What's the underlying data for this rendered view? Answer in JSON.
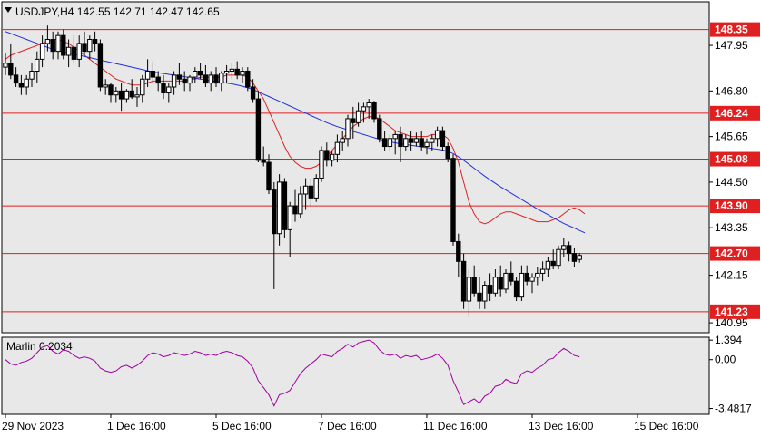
{
  "header": {
    "symbol_line": "USDJPY,H4  142.55 142.71 142.47 142.65"
  },
  "oscillator": {
    "label": "Marlin 0.2034",
    "ticks": [
      "1.394",
      "0.00",
      "-3.4817"
    ],
    "tick_values": [
      1.394,
      0.0,
      -3.4817
    ]
  },
  "colors": {
    "background": "#ffffff",
    "plot_bg": "#e8e8e8",
    "candle": "#000000",
    "level_line": "#e02020",
    "level_label_bg": "#e02020",
    "fast_ma": "#e02020",
    "slow_ma": "#2030e0",
    "oscillator": "#a000a0"
  },
  "chart_data": [
    {
      "type": "candlestick",
      "title": "USDJPY,H4",
      "ohlc_current": {
        "open": 142.55,
        "high": 142.71,
        "low": 142.47,
        "close": 142.65
      },
      "y_ticks": [
        "147.95",
        "146.80",
        "145.65",
        "144.50",
        "143.35",
        "142.15",
        "140.95"
      ],
      "y_tick_values": [
        147.95,
        146.8,
        145.65,
        144.5,
        143.35,
        142.15,
        140.95
      ],
      "ylim": [
        140.7,
        149.05
      ],
      "x_ticks": [
        "29 Nov 2023",
        "1 Dec 16:00",
        "5 Dec 16:00",
        "7 Dec 16:00",
        "11 Dec 16:00",
        "13 Dec 16:00",
        "15 Dec 16:00"
      ],
      "x_tick_index": [
        0,
        20,
        40,
        60,
        80,
        100,
        120
      ],
      "levels": [
        {
          "value": 148.35,
          "label": "148.35"
        },
        {
          "value": 146.24,
          "label": "146.24"
        },
        {
          "value": 145.08,
          "label": "145.08"
        },
        {
          "value": 143.9,
          "label": "143.90"
        },
        {
          "value": 142.7,
          "label": "142.70"
        },
        {
          "value": 141.23,
          "label": "141.23"
        }
      ],
      "candles": [
        [
          147.4,
          147.75,
          147.2,
          147.5
        ],
        [
          147.5,
          148.0,
          147.1,
          147.2
        ],
        [
          147.2,
          147.4,
          146.9,
          147.0
        ],
        [
          147.0,
          147.2,
          146.7,
          146.9
        ],
        [
          146.9,
          147.2,
          146.7,
          147.1
        ],
        [
          147.1,
          147.5,
          146.9,
          147.3
        ],
        [
          147.3,
          147.8,
          147.0,
          147.6
        ],
        [
          147.6,
          148.2,
          147.4,
          148.0
        ],
        [
          148.0,
          148.45,
          147.8,
          148.1
        ],
        [
          148.1,
          148.3,
          147.6,
          147.8
        ],
        [
          147.8,
          148.3,
          147.6,
          148.2
        ],
        [
          148.2,
          148.35,
          147.6,
          147.7
        ],
        [
          147.7,
          148.1,
          147.4,
          147.9
        ],
        [
          147.9,
          148.2,
          147.5,
          147.6
        ],
        [
          147.6,
          148.2,
          147.4,
          148.0
        ],
        [
          148.0,
          148.3,
          147.7,
          147.8
        ],
        [
          147.8,
          148.2,
          147.6,
          148.1
        ],
        [
          148.1,
          148.3,
          147.8,
          148.0
        ],
        [
          148.0,
          148.1,
          146.8,
          146.9
        ],
        [
          146.9,
          147.1,
          146.7,
          146.95
        ],
        [
          146.95,
          147.0,
          146.5,
          146.7
        ],
        [
          146.7,
          146.9,
          146.5,
          146.8
        ],
        [
          146.8,
          147.0,
          146.3,
          146.6
        ],
        [
          146.6,
          146.85,
          146.5,
          146.8
        ],
        [
          146.8,
          147.1,
          146.6,
          146.65
        ],
        [
          146.65,
          146.9,
          146.4,
          146.7
        ],
        [
          146.7,
          147.2,
          146.5,
          147.1
        ],
        [
          147.1,
          147.6,
          146.9,
          147.3
        ],
        [
          147.3,
          147.55,
          147.0,
          147.15
        ],
        [
          147.15,
          147.3,
          146.8,
          147.0
        ],
        [
          147.0,
          147.2,
          146.6,
          146.75
        ],
        [
          146.75,
          147.0,
          146.5,
          146.9
        ],
        [
          146.9,
          147.3,
          146.7,
          147.2
        ],
        [
          147.2,
          147.5,
          146.95,
          147.1
        ],
        [
          147.1,
          147.3,
          146.8,
          147.0
        ],
        [
          147.0,
          147.2,
          146.8,
          147.15
        ],
        [
          147.15,
          147.4,
          147.0,
          147.3
        ],
        [
          147.3,
          147.5,
          147.1,
          147.2
        ],
        [
          147.2,
          147.45,
          146.9,
          147.0
        ],
        [
          147.0,
          147.3,
          146.8,
          147.2
        ],
        [
          147.2,
          147.4,
          146.9,
          147.0
        ],
        [
          147.0,
          147.3,
          146.8,
          147.25
        ],
        [
          147.25,
          147.45,
          147.0,
          147.3
        ],
        [
          147.3,
          147.5,
          147.1,
          147.35
        ],
        [
          147.35,
          147.55,
          147.1,
          147.2
        ],
        [
          147.2,
          147.4,
          147.0,
          147.3
        ],
        [
          147.3,
          147.4,
          146.8,
          146.9
        ],
        [
          146.9,
          147.1,
          146.5,
          146.6
        ],
        [
          146.6,
          146.8,
          145.0,
          145.05
        ],
        [
          145.05,
          145.4,
          144.9,
          145.0
        ],
        [
          145.0,
          145.2,
          144.2,
          144.3
        ],
        [
          144.3,
          144.5,
          141.8,
          143.2
        ],
        [
          143.2,
          144.7,
          142.9,
          144.5
        ],
        [
          144.5,
          144.6,
          143.1,
          143.3
        ],
        [
          143.3,
          144.0,
          142.6,
          143.9
        ],
        [
          143.9,
          144.3,
          143.5,
          143.7
        ],
        [
          143.7,
          144.4,
          143.6,
          144.2
        ],
        [
          144.2,
          144.6,
          143.8,
          144.4
        ],
        [
          144.4,
          144.6,
          143.9,
          144.1
        ],
        [
          144.1,
          144.7,
          144.0,
          144.6
        ],
        [
          144.6,
          145.4,
          144.5,
          145.3
        ],
        [
          145.3,
          145.5,
          144.9,
          145.05
        ],
        [
          145.05,
          145.3,
          144.9,
          145.2
        ],
        [
          145.2,
          145.7,
          145.0,
          145.5
        ],
        [
          145.5,
          145.8,
          145.3,
          145.6
        ],
        [
          145.6,
          146.2,
          145.4,
          146.1
        ],
        [
          146.1,
          146.4,
          145.6,
          146.0
        ],
        [
          146.0,
          146.5,
          145.9,
          146.3
        ],
        [
          146.3,
          146.5,
          146.0,
          146.4
        ],
        [
          146.4,
          146.6,
          146.1,
          146.5
        ],
        [
          146.5,
          146.55,
          146.0,
          146.1
        ],
        [
          146.1,
          146.2,
          145.5,
          145.6
        ],
        [
          145.6,
          145.8,
          145.3,
          145.4
        ],
        [
          145.4,
          145.7,
          145.3,
          145.6
        ],
        [
          145.6,
          145.8,
          145.2,
          145.7
        ],
        [
          145.7,
          145.9,
          145.0,
          145.4
        ],
        [
          145.4,
          145.7,
          145.3,
          145.6
        ],
        [
          145.6,
          145.8,
          145.3,
          145.5
        ],
        [
          145.5,
          145.75,
          145.4,
          145.6
        ],
        [
          145.6,
          145.8,
          145.3,
          145.4
        ],
        [
          145.4,
          145.6,
          145.2,
          145.5
        ],
        [
          145.5,
          145.7,
          145.3,
          145.6
        ],
        [
          145.6,
          145.9,
          145.4,
          145.8
        ],
        [
          145.8,
          145.9,
          145.3,
          145.4
        ],
        [
          145.4,
          145.5,
          145.0,
          145.1
        ],
        [
          145.1,
          145.2,
          142.9,
          143.0
        ],
        [
          143.0,
          143.2,
          142.1,
          142.5
        ],
        [
          142.5,
          142.7,
          141.3,
          141.5
        ],
        [
          141.5,
          142.3,
          141.1,
          142.1
        ],
        [
          142.1,
          142.4,
          141.6,
          141.7
        ],
        [
          141.7,
          142.1,
          141.3,
          141.5
        ],
        [
          141.5,
          142.0,
          141.3,
          141.9
        ],
        [
          141.9,
          142.2,
          141.5,
          141.7
        ],
        [
          141.7,
          142.3,
          141.6,
          142.1
        ],
        [
          142.1,
          142.4,
          141.6,
          141.8
        ],
        [
          141.8,
          142.3,
          141.7,
          142.2
        ],
        [
          142.2,
          142.5,
          141.9,
          142.0
        ],
        [
          142.0,
          142.1,
          141.5,
          141.6
        ],
        [
          141.6,
          142.4,
          141.5,
          142.2
        ],
        [
          142.2,
          142.4,
          141.9,
          142.0
        ],
        [
          142.0,
          142.2,
          141.7,
          142.1
        ],
        [
          142.1,
          142.35,
          141.9,
          142.2
        ],
        [
          142.2,
          142.5,
          142.0,
          142.3
        ],
        [
          142.3,
          142.6,
          142.1,
          142.5
        ],
        [
          142.5,
          142.8,
          142.3,
          142.4
        ],
        [
          142.4,
          142.9,
          142.3,
          142.8
        ],
        [
          142.8,
          143.1,
          142.6,
          142.9
        ],
        [
          142.9,
          143.0,
          142.5,
          142.7
        ],
        [
          142.7,
          142.85,
          142.35,
          142.5
        ],
        [
          142.55,
          142.71,
          142.47,
          142.65
        ]
      ],
      "series": [
        {
          "name": "",
          "kind": "fast_ma",
          "values": [
            147.6,
            147.7,
            147.75,
            147.8,
            147.85,
            147.9,
            147.95,
            148.0,
            148.05,
            148.1,
            148.1,
            148.05,
            148.0,
            147.9,
            147.8,
            147.7,
            147.6,
            147.5,
            147.4,
            147.3,
            147.2,
            147.1,
            147.05,
            147.0,
            146.95,
            146.95,
            146.95,
            147.0,
            147.05,
            147.05,
            147.05,
            147.05,
            147.05,
            147.05,
            147.05,
            147.1,
            147.1,
            147.15,
            147.15,
            147.15,
            147.15,
            147.15,
            147.2,
            147.2,
            147.2,
            147.2,
            147.15,
            147.0,
            146.8,
            146.6,
            146.3,
            146.0,
            145.7,
            145.4,
            145.15,
            145.0,
            144.9,
            144.85,
            144.85,
            144.9,
            145.0,
            145.15,
            145.3,
            145.45,
            145.6,
            145.75,
            145.9,
            146.0,
            146.1,
            146.15,
            146.15,
            146.1,
            146.0,
            145.9,
            145.8,
            145.75,
            145.7,
            145.65,
            145.65,
            145.65,
            145.65,
            145.7,
            145.7,
            145.7,
            145.6,
            145.35,
            145.0,
            144.5,
            144.0,
            143.7,
            143.5,
            143.45,
            143.5,
            143.6,
            143.7,
            143.75,
            143.75,
            143.7,
            143.65,
            143.6,
            143.55,
            143.5,
            143.5,
            143.5,
            143.55,
            143.6,
            143.7,
            143.8,
            143.85,
            143.8,
            143.7
          ]
        },
        {
          "name": "",
          "kind": "slow_ma",
          "values": [
            148.3,
            148.25,
            148.2,
            148.15,
            148.1,
            148.05,
            148.0,
            147.95,
            147.9,
            147.85,
            147.82,
            147.79,
            147.76,
            147.73,
            147.7,
            147.67,
            147.64,
            147.61,
            147.58,
            147.55,
            147.52,
            147.49,
            147.46,
            147.43,
            147.4,
            147.37,
            147.34,
            147.31,
            147.28,
            147.26,
            147.24,
            147.22,
            147.2,
            147.18,
            147.16,
            147.14,
            147.12,
            147.1,
            147.08,
            147.06,
            147.04,
            147.02,
            147.0,
            146.98,
            146.95,
            146.92,
            146.88,
            146.84,
            146.78,
            146.72,
            146.66,
            146.6,
            146.54,
            146.48,
            146.42,
            146.36,
            146.3,
            146.24,
            146.18,
            146.12,
            146.06,
            146.0,
            145.95,
            145.9,
            145.86,
            145.82,
            145.78,
            145.74,
            145.7,
            145.66,
            145.62,
            145.58,
            145.55,
            145.52,
            145.49,
            145.47,
            145.45,
            145.43,
            145.41,
            145.39,
            145.37,
            145.35,
            145.33,
            145.31,
            145.28,
            145.22,
            145.14,
            145.05,
            144.95,
            144.85,
            144.75,
            144.65,
            144.56,
            144.47,
            144.38,
            144.3,
            144.22,
            144.14,
            144.06,
            143.98,
            143.9,
            143.82,
            143.75,
            143.68,
            143.6,
            143.53,
            143.46,
            143.4,
            143.34,
            143.28,
            143.22
          ]
        }
      ]
    },
    {
      "type": "line",
      "title": "Marlin 0.2034",
      "ylim": [
        -3.9,
        1.6
      ],
      "series": [
        {
          "name": "Marlin",
          "values": [
            0.0,
            -0.3,
            -0.4,
            -0.2,
            -0.1,
            0.1,
            0.5,
            0.9,
            1.0,
            0.6,
            0.4,
            0.7,
            0.6,
            0.3,
            0.1,
            0.2,
            0.1,
            -0.1,
            -0.6,
            -0.8,
            -0.9,
            -0.8,
            -0.5,
            -0.4,
            -0.6,
            -0.4,
            -0.1,
            0.3,
            0.5,
            0.4,
            0.2,
            0.3,
            0.5,
            0.4,
            0.3,
            0.4,
            0.6,
            0.5,
            0.3,
            0.4,
            0.3,
            0.5,
            0.6,
            0.5,
            0.3,
            0.2,
            -0.1,
            -0.6,
            -1.5,
            -2.0,
            -2.5,
            -3.3,
            -2.5,
            -2.4,
            -2.2,
            -1.6,
            -1.0,
            -0.6,
            -0.3,
            0.0,
            0.4,
            0.3,
            0.2,
            0.6,
            0.8,
            1.1,
            0.9,
            1.2,
            1.3,
            1.4,
            1.2,
            0.7,
            0.4,
            0.3,
            0.4,
            0.1,
            0.3,
            0.2,
            0.3,
            0.0,
            0.1,
            0.2,
            0.4,
            0.1,
            -0.4,
            -1.5,
            -2.3,
            -3.2,
            -3.0,
            -2.8,
            -3.1,
            -2.6,
            -2.4,
            -1.9,
            -1.8,
            -1.4,
            -1.6,
            -1.7,
            -1.0,
            -0.8,
            -0.9,
            -0.6,
            -0.4,
            0.0,
            0.1,
            0.5,
            0.8,
            0.6,
            0.3,
            0.2
          ]
        }
      ]
    }
  ]
}
